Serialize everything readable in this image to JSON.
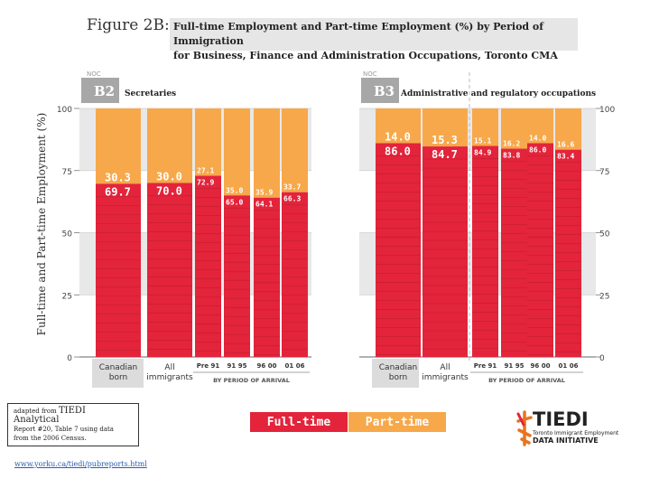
{
  "figure": {
    "title": "Figure 2B:",
    "subtitle_line1": "Full-time Employment and Part-time Employment (%) by Period of Immigration",
    "subtitle_line2": "for Business, Finance and Administration Occupations, Toronto CMA"
  },
  "y_axis_title": "Full-time and Part-time Employment (%)",
  "legend": {
    "full": "Full-time",
    "part": "Part-time"
  },
  "source": {
    "prefix": "adapted from",
    "report": "TIEDI Analytical",
    "line2": "Report #20, Table 7 using data",
    "line3": "from the 2006 Census."
  },
  "url": "www.yorku.ca/tiedi/pubreports.html",
  "logo": {
    "name": "TIEDI",
    "line1": "Toronto Immigrant Employment",
    "line2": "DATA INITIATIVE"
  },
  "colors": {
    "full": "#e3243b",
    "part": "#f7a84b",
    "band": "#e8e8e8",
    "header": "#a7a7a7"
  },
  "chart_data": [
    {
      "type": "bar",
      "stacked": true,
      "noc_label": "NOC",
      "code": "B2",
      "title": "Secretaries",
      "ylim": [
        0,
        100
      ],
      "yticks": [
        0,
        25,
        50,
        75,
        100
      ],
      "categories": [
        "Canadian born",
        "All immigrants",
        "Pre 91",
        "91-95",
        "96-00",
        "01-06"
      ],
      "group_label": "BY PERIOD OF ARRIVAL",
      "series": [
        {
          "name": "Full-time",
          "values": [
            69.7,
            70.0,
            72.9,
            65.0,
            64.1,
            66.3
          ]
        },
        {
          "name": "Part-time",
          "values": [
            30.3,
            30.0,
            27.1,
            35.0,
            35.9,
            33.7
          ]
        }
      ]
    },
    {
      "type": "bar",
      "stacked": true,
      "noc_label": "NOC",
      "code": "B3",
      "title": "Administrative and regulatory occupations",
      "ylim": [
        0,
        100
      ],
      "yticks": [
        0,
        25,
        50,
        75,
        100
      ],
      "categories": [
        "Canadian born",
        "All immigrants",
        "Pre 91",
        "91-95",
        "96-00",
        "01-06"
      ],
      "group_label": "BY PERIOD OF ARRIVAL",
      "series": [
        {
          "name": "Full-time",
          "values": [
            86.0,
            84.7,
            84.9,
            83.8,
            86.0,
            83.4
          ]
        },
        {
          "name": "Part-time",
          "values": [
            14.0,
            15.3,
            15.1,
            16.2,
            14.0,
            16.6
          ]
        }
      ]
    }
  ]
}
